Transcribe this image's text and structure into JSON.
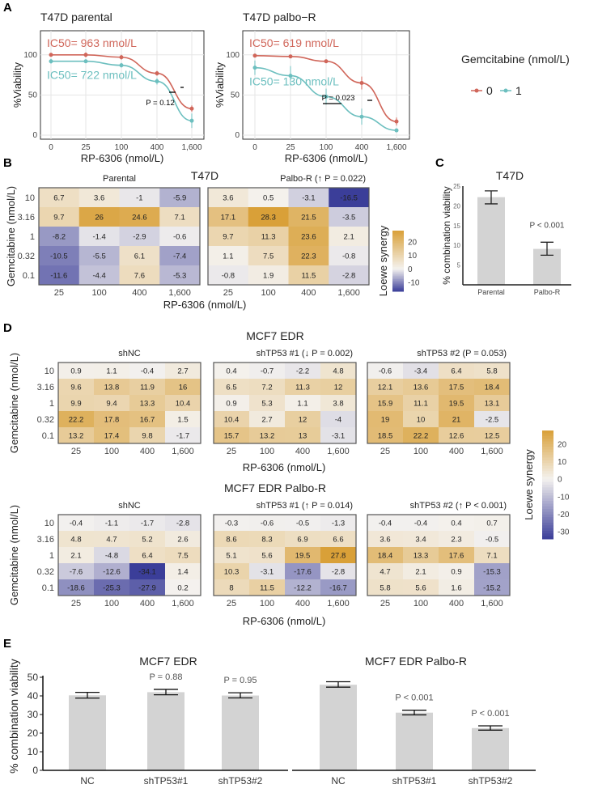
{
  "panel_labels": [
    "A",
    "B",
    "C",
    "D",
    "E"
  ],
  "chart_data": [
    {
      "id": "A-left",
      "type": "line",
      "title": "T47D parental",
      "xlabel": "RP-6306 (nmol/L)",
      "ylabel": "%Viability",
      "x": [
        "0",
        "25",
        "100",
        "400",
        "1,600"
      ],
      "yticks": [
        0,
        50,
        100
      ],
      "ylim": [
        -5,
        130
      ],
      "grid": true,
      "series": [
        {
          "name": "0",
          "color": "#D0665A",
          "values": [
            100,
            100,
            97,
            77,
            33
          ],
          "err": [
            2,
            3,
            3,
            3,
            4
          ],
          "ic50_label": "IC50= 963 nmol/L"
        },
        {
          "name": "1",
          "color": "#6CBFBF",
          "values": [
            92,
            92,
            87,
            67,
            18
          ],
          "err": [
            3,
            2,
            3,
            4,
            9
          ],
          "ic50_label": "IC50= 722 nmol/L"
        }
      ],
      "annotation": "P = 0.12"
    },
    {
      "id": "A-right",
      "type": "line",
      "title": "T47D palbo−R",
      "xlabel": "RP-6306 (nmol/L)",
      "ylabel": "%Viability",
      "x": [
        "0",
        "25",
        "100",
        "400",
        "1,600"
      ],
      "yticks": [
        0,
        50,
        100
      ],
      "ylim": [
        -5,
        130
      ],
      "grid": true,
      "series": [
        {
          "name": "0",
          "color": "#D0665A",
          "values": [
            99,
            98,
            92,
            65,
            17
          ],
          "err": [
            1,
            1,
            1,
            8,
            5
          ],
          "ic50_label": "IC50= 619 nmol/L"
        },
        {
          "name": "1",
          "color": "#6CBFBF",
          "values": [
            84,
            74,
            48,
            23,
            6
          ],
          "err": [
            9,
            12,
            10,
            10,
            2
          ],
          "ic50_label": "IC50= 130 nmol/L"
        }
      ],
      "annotation": "P = 0.023"
    },
    {
      "id": "B",
      "type": "heatmap",
      "title": "T47D",
      "xlabel": "RP-6306 (nmol/L)",
      "ylabel": "Gemcitabine (nmol/L)",
      "x": [
        "25",
        "100",
        "400",
        "1,600"
      ],
      "y": [
        "10",
        "3.16",
        "1",
        "0.32",
        "0.1"
      ],
      "legend_title": "Loewe synergy",
      "legend_ticks": [
        20,
        10,
        0,
        -10
      ],
      "range": [
        -16.5,
        28.3
      ],
      "facets": [
        {
          "label": "Parental",
          "values": [
            [
              6.7,
              3.6,
              -1,
              -5.9
            ],
            [
              9.7,
              26,
              24.6,
              7.1
            ],
            [
              -8.2,
              -1.4,
              -2.9,
              -0.6
            ],
            [
              -10.5,
              -5.5,
              6.1,
              -7.4
            ],
            [
              -11.6,
              -4.4,
              7.6,
              -5.3
            ]
          ]
        },
        {
          "label": "Palbo-R (↑ P = 0.022)",
          "values": [
            [
              3.6,
              0.5,
              -3.1,
              -16.5
            ],
            [
              17.1,
              28.3,
              21.5,
              -3.5
            ],
            [
              9.7,
              11.3,
              23.6,
              2.1
            ],
            [
              1.1,
              7.5,
              22.3,
              -0.8
            ],
            [
              -0.8,
              1.9,
              11.5,
              -2.8
            ]
          ]
        }
      ]
    },
    {
      "id": "C",
      "type": "bar",
      "title": "T47D",
      "ylabel": "% combination viability",
      "categories": [
        "Parental",
        "Palbo-R"
      ],
      "values": [
        22.2,
        9.1
      ],
      "err_low": [
        20.5,
        7.5
      ],
      "err_high": [
        23.8,
        10.8
      ],
      "ylim": [
        0,
        25
      ],
      "yticks": [
        5,
        10,
        15,
        20,
        25
      ],
      "annotations": [
        "",
        "P < 0.001"
      ],
      "color": "#D3D3D3"
    },
    {
      "id": "D-top",
      "type": "heatmap",
      "title": "MCF7 EDR",
      "xlabel": "RP-6306 (nmol/L)",
      "ylabel": "Gemcitabine (nmol/L)",
      "x": [
        "25",
        "100",
        "400",
        "1,600"
      ],
      "y": [
        "10",
        "3.16",
        "1",
        "0.32",
        "0.1"
      ],
      "range": [
        -34.1,
        27.8
      ],
      "facets": [
        {
          "label": "shNC",
          "values": [
            [
              0.9,
              1.1,
              -0.4,
              2.7
            ],
            [
              9.6,
              13.8,
              11.9,
              16
            ],
            [
              9.9,
              9.4,
              13.3,
              10.4
            ],
            [
              22.2,
              17.8,
              16.7,
              1.5
            ],
            [
              13.2,
              17.4,
              9.8,
              -1.7
            ]
          ]
        },
        {
          "label": "shTP53 #1 (↓ P = 0.002)",
          "values": [
            [
              0.4,
              -0.7,
              -2.2,
              4.8
            ],
            [
              6.5,
              7.2,
              11.3,
              12
            ],
            [
              0.9,
              5.3,
              1.1,
              3.8
            ],
            [
              10.4,
              2.7,
              12,
              -4
            ],
            [
              15.7,
              13.2,
              13,
              -3.1
            ]
          ]
        },
        {
          "label": "shTP53 #2 (P = 0.053)",
          "values": [
            [
              -0.6,
              -3.4,
              6.4,
              5.8
            ],
            [
              12.1,
              13.6,
              17.5,
              18.4
            ],
            [
              15.9,
              11.1,
              19.5,
              13.1
            ],
            [
              19,
              10,
              21,
              -2.5
            ],
            [
              18.5,
              22.2,
              12.6,
              12.5
            ]
          ]
        }
      ]
    },
    {
      "id": "D-bottom",
      "type": "heatmap",
      "title": "MCF7 EDR Palbo-R",
      "xlabel": "RP-6306 (nmol/L)",
      "ylabel": "Gemcitabine (nmol/L)",
      "x": [
        "25",
        "100",
        "400",
        "1,600"
      ],
      "y": [
        "10",
        "3.16",
        "1",
        "0.32",
        "0.1"
      ],
      "range": [
        -34.1,
        27.8
      ],
      "legend_title": "Loewe synergy",
      "legend_ticks": [
        20,
        10,
        0,
        -10,
        -20,
        -30
      ],
      "facets": [
        {
          "label": "shNC",
          "values": [
            [
              -0.4,
              -1.1,
              -1.7,
              -2.8
            ],
            [
              4.8,
              4.7,
              5.2,
              2.6
            ],
            [
              2.1,
              -4.8,
              6.4,
              7.5
            ],
            [
              -7.6,
              -12.6,
              -34.1,
              1.4
            ],
            [
              -18.6,
              -25.3,
              -27.9,
              0.2
            ]
          ]
        },
        {
          "label": "shTP53 #1 (↑ P = 0.014)",
          "values": [
            [
              -0.3,
              -0.6,
              -0.5,
              -1.3
            ],
            [
              8.6,
              8.3,
              6.9,
              6.6
            ],
            [
              5.1,
              5.6,
              19.5,
              27.8
            ],
            [
              10.3,
              -3.1,
              -17.6,
              -2.8
            ],
            [
              8,
              11.5,
              -12.2,
              -16.7
            ]
          ]
        },
        {
          "label": "shTP53 #2 (↑ P < 0.001)",
          "values": [
            [
              -0.4,
              -0.4,
              0.4,
              0.7
            ],
            [
              3.6,
              3.4,
              2.3,
              -0.5
            ],
            [
              18.4,
              13.3,
              17.6,
              7.1
            ],
            [
              4.7,
              2.1,
              0.9,
              -15.3
            ],
            [
              5.8,
              5.6,
              1.6,
              -15.2
            ]
          ]
        }
      ]
    },
    {
      "id": "E",
      "type": "bar",
      "ylabel": "% combination viability",
      "ylim": [
        0,
        50
      ],
      "yticks": [
        0,
        10,
        20,
        30,
        40,
        50
      ],
      "color": "#D3D3D3",
      "facets": [
        {
          "title": "MCF7 EDR",
          "categories": [
            "NC",
            "shTP53#1",
            "shTP53#2"
          ],
          "values": [
            40.3,
            42,
            40.2
          ],
          "err_low": [
            38.8,
            40.6,
            38.9
          ],
          "err_high": [
            41.9,
            43.5,
            41.7
          ],
          "annotations": [
            "",
            "P = 0.88",
            "P = 0.95"
          ]
        },
        {
          "title": "MCF7 EDR Palbo-R",
          "categories": [
            "NC",
            "shTP53#1",
            "shTP53#2"
          ],
          "values": [
            46,
            31,
            22.7
          ],
          "err_low": [
            44.7,
            29.8,
            21.6
          ],
          "err_high": [
            47.6,
            32.3,
            23.9
          ],
          "annotations": [
            "",
            "P < 0.001",
            "P < 0.001"
          ]
        }
      ]
    }
  ],
  "legend_A": {
    "title": "Gemcitabine (nmol/L)",
    "items": [
      "0",
      "1"
    ]
  },
  "colors": {
    "positive": "#D9A038",
    "zero": "#F4F2EF",
    "negative": "#3B3E99",
    "bar": "#D3D3D3"
  }
}
